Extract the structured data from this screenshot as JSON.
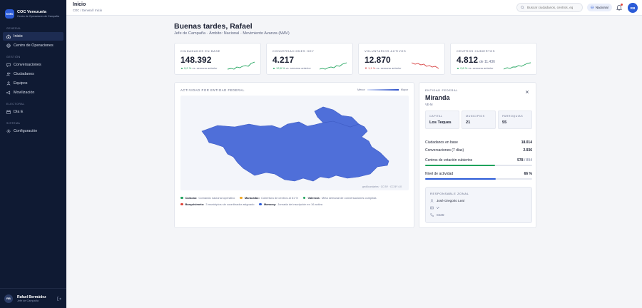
{
  "brand": {
    "logo": "COC",
    "title": "COC Venezuela",
    "subtitle": "Centro de Operaciones de Campaña"
  },
  "sidebar": {
    "sections": [
      {
        "label": "GENERAL",
        "items": [
          {
            "label": "Inicio",
            "icon": "home-icon",
            "active": true
          },
          {
            "label": "Centro de Operaciones",
            "icon": "globe-icon"
          }
        ]
      },
      {
        "label": "GESTIÓN",
        "items": [
          {
            "label": "Conversaciones",
            "icon": "chat-icon"
          },
          {
            "label": "Ciudadanos",
            "icon": "users-icon"
          },
          {
            "label": "Equipos",
            "icon": "team-icon"
          },
          {
            "label": "Movilización",
            "icon": "megaphone-icon"
          }
        ]
      },
      {
        "label": "ELECTORAL",
        "items": [
          {
            "label": "Día E",
            "icon": "calendar-icon"
          }
        ]
      },
      {
        "label": "SISTEMA",
        "items": [
          {
            "label": "Configuración",
            "icon": "gear-icon"
          }
        ]
      }
    ],
    "user": {
      "initials": "RB",
      "name": "Rafael Bermúdez",
      "role": "Jefe de Campaña"
    }
  },
  "topbar": {
    "title": "Inicio",
    "breadcrumb": "COC  /  General / Inicio",
    "search_placeholder": "Buscar ciudadanos, centros, eq",
    "scope_label": "Nacional",
    "avatar": "RB"
  },
  "header": {
    "greeting": "Buenas tardes, Rafael",
    "subtitle": "Jefe de Campaña · Ámbito: Nacional · Movimiento Avanza (MAV)"
  },
  "kpis": [
    {
      "label": "CIUDADANOS EN BASE",
      "value": "148.392",
      "extra": "",
      "delta_arrow": "▲",
      "delta": "5,2 %",
      "delta_dir": "up",
      "delta_text": "vs. semana anterior"
    },
    {
      "label": "CONVERSACIONES HOY",
      "value": "4.217",
      "extra": "",
      "delta_arrow": "▲",
      "delta": "12,8 %",
      "delta_dir": "up",
      "delta_text": "vs. semana anterior"
    },
    {
      "label": "VOLUNTARIOS ACTIVOS",
      "value": "12.870",
      "extra": "",
      "delta_arrow": "▼",
      "delta": "1,1 %",
      "delta_dir": "down",
      "delta_text": "vs. semana anterior"
    },
    {
      "label": "CENTROS CUBIERTOS",
      "value": "4.812",
      "extra": "de 11.436",
      "delta_arrow": "▲",
      "delta": "2,8 %",
      "delta_dir": "up",
      "delta_text": "vs. semana anterior"
    }
  ],
  "colors": {
    "up": "#1fa35c",
    "down": "#d63a3a",
    "map_fill": "#4f6fd9",
    "accent": "#2b5bd7"
  },
  "map": {
    "title": "ACTIVIDAD POR ENTIDAD FEDERAL",
    "legend_min": "Menor",
    "legend_max": "Mayor",
    "credit": "geoBoundaries · CC BY · CC BY 4.0",
    "annotations": [
      {
        "city": "Caracas:",
        "text": "Comando nacional operativo",
        "color": "#1fa35c"
      },
      {
        "city": "Maracaibo:",
        "text": "Cobertura de centros al 61 %",
        "color": "#f0a623"
      },
      {
        "city": "Valencia:",
        "text": "Meta semanal de conversaciones cumplida",
        "color": "#1fa35c"
      },
      {
        "city": "Barquisimeto:",
        "text": "3 municipios sin coordinador asignado",
        "color": "#e0443a"
      },
      {
        "city": "Maracay:",
        "text": "Jornada de inscripción en 16 activa",
        "color": "#2b5bd7"
      }
    ]
  },
  "detail": {
    "label": "ENTIDAD FEDERAL",
    "name": "Miranda",
    "code": "VE-M",
    "mini": [
      {
        "label": "CAPITAL",
        "value": "Los Teques"
      },
      {
        "label": "MUNICIPIOS",
        "value": "21"
      },
      {
        "label": "PARROQUIAS",
        "value": "55"
      }
    ],
    "stats": {
      "ciudadanos_label": "Ciudadanos en base",
      "ciudadanos_value": "18.014",
      "conversaciones_label": "Conversaciones (7 días)",
      "conversaciones_value": "2.936",
      "centros_label": "Centros de votación cubiertos",
      "centros_value": "578",
      "centros_total": "/ 894",
      "centros_fraction": 0.65,
      "actividad_label": "Nivel de actividad",
      "actividad_value": "66 %",
      "actividad_fraction": 0.66
    },
    "responsable": {
      "label": "RESPONSABLE ZONAL",
      "name": "José Gregorio Leal",
      "email": "V-",
      "phone": "0426-"
    }
  }
}
